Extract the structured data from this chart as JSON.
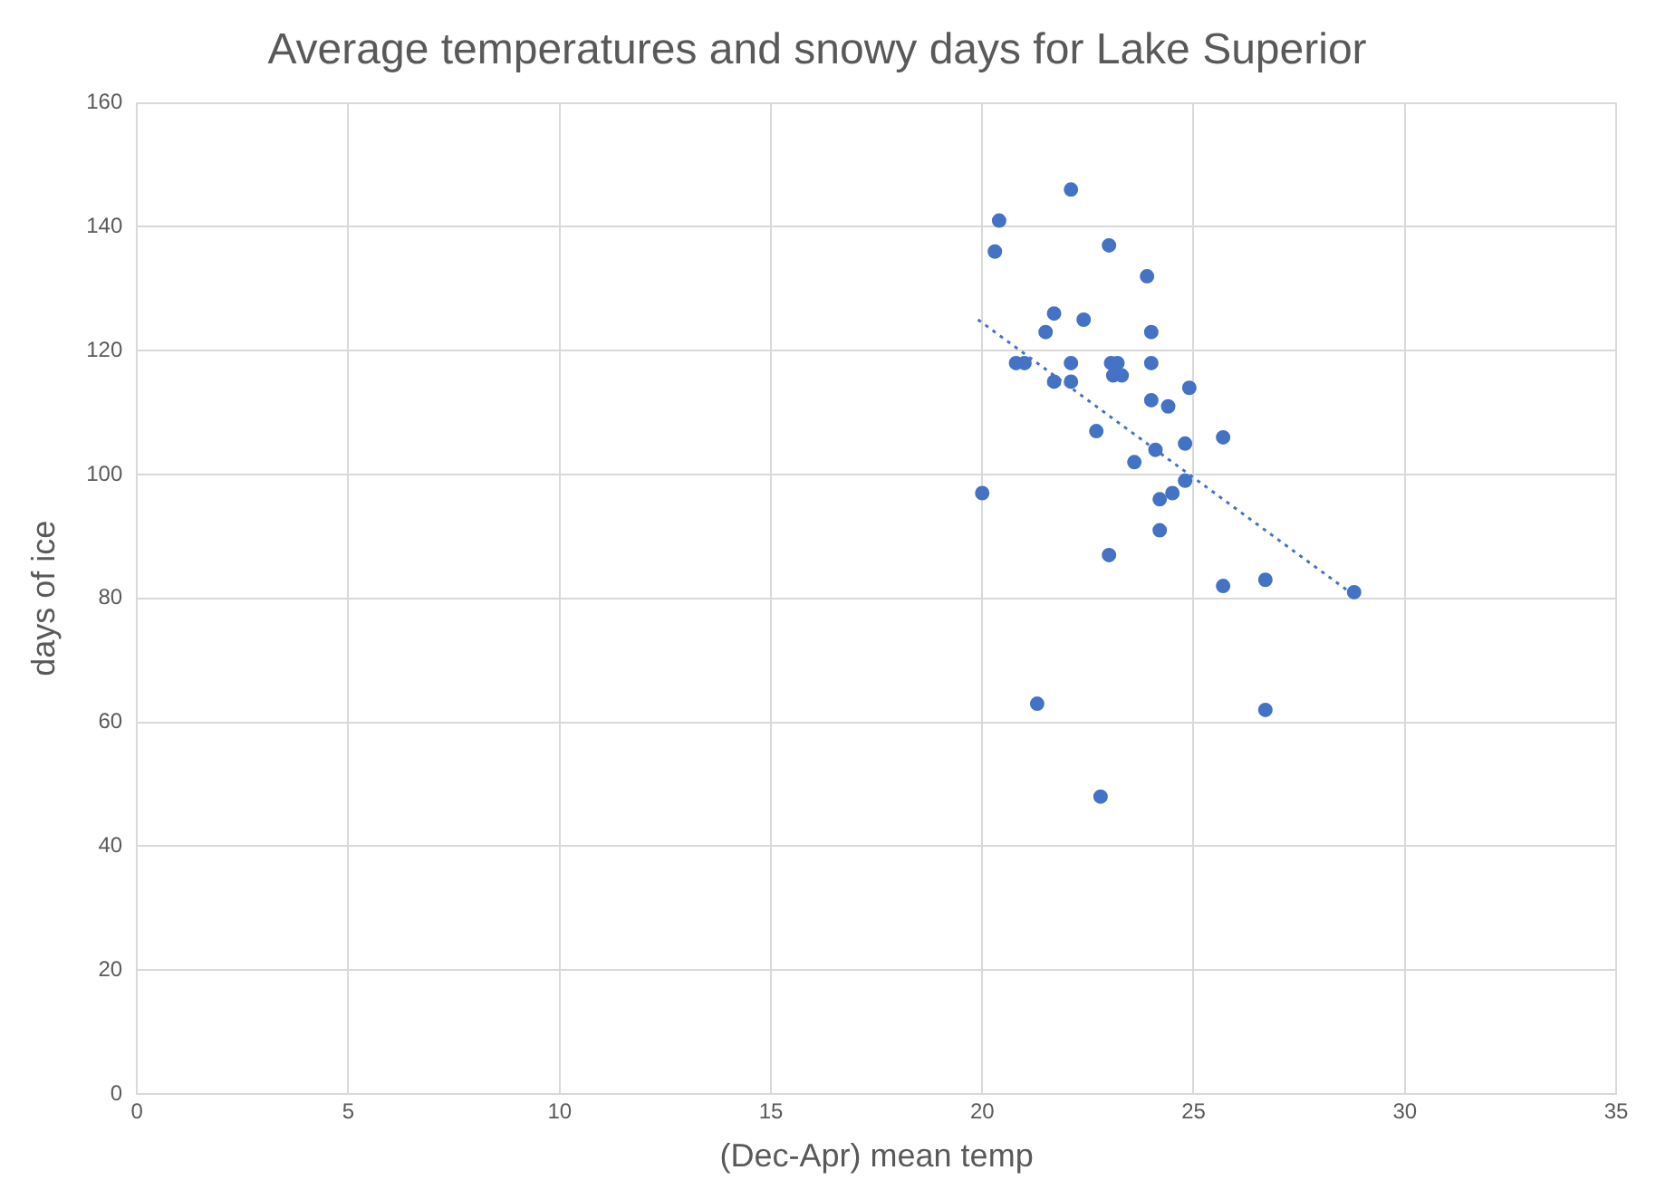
{
  "chart_data": {
    "type": "scatter",
    "title": "Average temperatures and snowy days for Lake Superior",
    "xlabel": "(Dec-Apr) mean temp",
    "ylabel": "days of ice",
    "xlim": [
      0,
      35
    ],
    "xticks": [
      0,
      5,
      10,
      15,
      20,
      25,
      30,
      35
    ],
    "ylim": [
      0,
      160
    ],
    "yticks": [
      0,
      20,
      40,
      60,
      80,
      100,
      120,
      140,
      160
    ],
    "grid": true,
    "legend": false,
    "series": [
      {
        "type": "scatter",
        "color": "#4472c4",
        "marker": "circle",
        "x": [
          20.0,
          20.3,
          20.4,
          22.1,
          23.0,
          23.9,
          21.5,
          21.7,
          22.4,
          24.0,
          20.8,
          21.0,
          22.1,
          23.05,
          23.2,
          24.0,
          21.7,
          22.1,
          23.1,
          23.3,
          24.9,
          24.0,
          24.4,
          22.7,
          25.7,
          24.1,
          24.8,
          23.6,
          24.8,
          24.5,
          24.2,
          24.2,
          23.0,
          25.7,
          26.7,
          28.8,
          21.3,
          26.7,
          22.8
        ],
        "values": [
          97,
          136,
          141,
          146,
          137,
          132,
          123,
          126,
          125,
          123,
          118,
          118,
          118,
          118,
          118,
          118,
          115,
          115,
          116,
          116,
          114,
          112,
          111,
          107,
          106,
          104,
          105,
          102,
          99,
          97,
          96,
          91,
          87,
          82,
          83,
          81,
          63,
          62,
          48
        ]
      },
      {
        "type": "line",
        "color": "#4472c4",
        "line_style": "dotted",
        "marker": "none",
        "x": [
          19.9,
          28.8
        ],
        "values": [
          125,
          80.5
        ]
      }
    ]
  }
}
